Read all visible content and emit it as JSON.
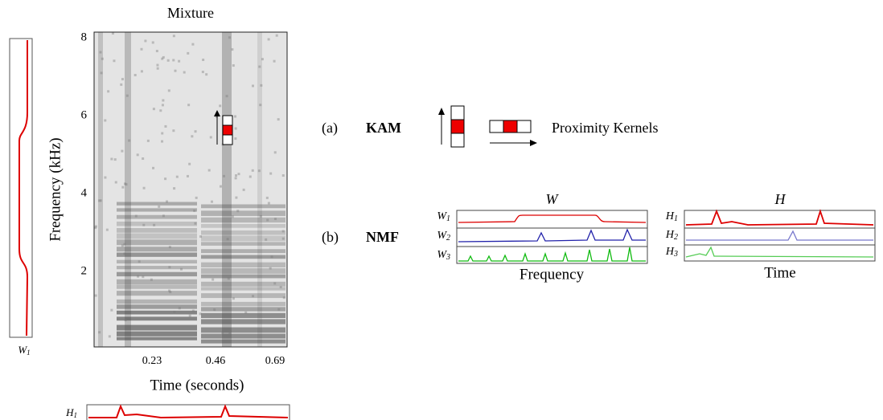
{
  "spectrogram": {
    "title": "Mixture",
    "ylabel": "Frequency (kHz)",
    "yticks": [
      "2",
      "4",
      "6",
      "8"
    ],
    "xticks": [
      "0.23",
      "0.46",
      "0.69"
    ],
    "xlabel": "Time (seconds)"
  },
  "side_panels": {
    "left": {
      "base": "W",
      "sub": "1"
    },
    "bottom": {
      "base": "H",
      "sub": "1"
    }
  },
  "kam": {
    "label": "(a)",
    "name": "KAM",
    "caption": "Proximity Kernels"
  },
  "nmf": {
    "label": "(b)",
    "name": "NMF",
    "w_panel": {
      "title": "W",
      "rows": [
        {
          "base": "W",
          "sub": "1"
        },
        {
          "base": "W",
          "sub": "2"
        },
        {
          "base": "W",
          "sub": "3"
        }
      ],
      "xlabel": "Frequency"
    },
    "h_panel": {
      "title": "H",
      "rows": [
        {
          "base": "H",
          "sub": "1"
        },
        {
          "base": "H",
          "sub": "2"
        },
        {
          "base": "H",
          "sub": "3"
        }
      ],
      "xlabel": "Time"
    }
  }
}
